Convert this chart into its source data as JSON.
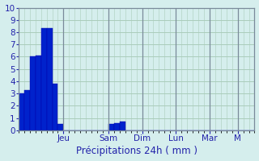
{
  "xlabel": "Précipitations 24h ( mm )",
  "background_color": "#d5eeed",
  "bar_color": "#0022cc",
  "bar_edge_color": "#0000aa",
  "ylim": [
    0,
    10
  ],
  "yticks": [
    0,
    1,
    2,
    3,
    4,
    5,
    6,
    7,
    8,
    9,
    10
  ],
  "day_labels": [
    "Jeu",
    "Sam",
    "Dim",
    "Lun",
    "Mar",
    "M"
  ],
  "day_tick_positions": [
    8,
    16,
    22,
    28,
    34,
    39
  ],
  "day_sep_positions": [
    8,
    16,
    22,
    28,
    34,
    39
  ],
  "n_bars": 42,
  "bar_values": [
    3.0,
    3.3,
    6.0,
    6.1,
    8.3,
    8.3,
    3.8,
    0.5,
    0,
    0,
    0,
    0,
    0,
    0,
    0,
    0,
    0.5,
    0.6,
    0.7,
    0,
    0,
    0,
    0,
    0,
    0,
    0,
    0,
    0,
    0,
    0,
    0,
    0,
    0,
    0,
    0,
    0,
    0,
    0,
    0,
    0,
    0,
    0
  ],
  "grid_color": "#aaccbb",
  "sep_color": "#7a8a9a",
  "tick_color": "#2222aa",
  "label_color": "#2222aa",
  "spine_color": "#7a8a9a",
  "font_size": 7.5,
  "xlabel_fontsize": 8.5
}
